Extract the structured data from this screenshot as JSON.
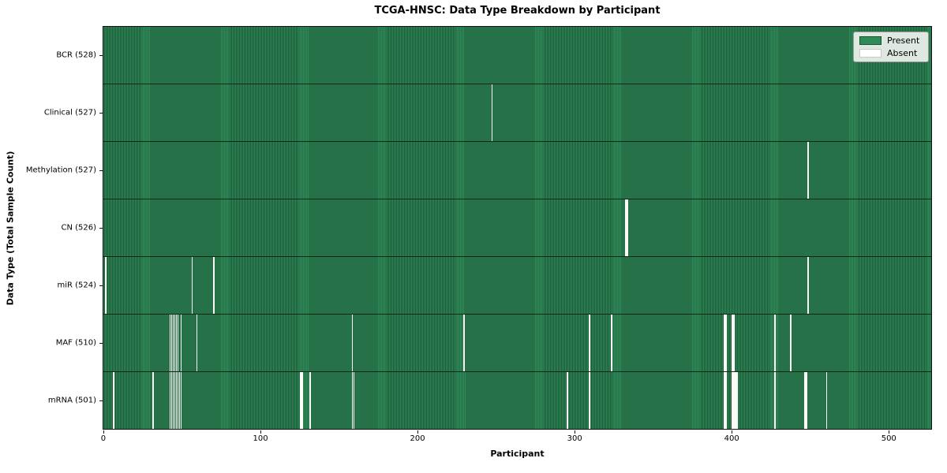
{
  "chart_data": {
    "type": "heatmap",
    "title": "TCGA-HNSC: Data Type Breakdown by Participant",
    "xlabel": "Participant",
    "ylabel": "Data Type (Total Sample Count)",
    "x_range": [
      0,
      528
    ],
    "x_ticks": [
      0,
      100,
      200,
      300,
      400,
      500
    ],
    "legend": [
      "Present",
      "Absent"
    ],
    "legend_position": "upper right",
    "grid": false,
    "colors": {
      "present": "#2e8b57",
      "present_edge_dark": "#1e5737",
      "absent": "#fbfbf8",
      "row_divider": "#0a1a10",
      "legend_bg": "#eef2ee"
    },
    "rows": [
      {
        "label": "BCR (528)",
        "data_type": "BCR",
        "present_count": 528,
        "absent_participants": []
      },
      {
        "label": "Clinical (527)",
        "data_type": "Clinical",
        "present_count": 527,
        "absent_participants": [
          247
        ]
      },
      {
        "label": "Methylation (527)",
        "data_type": "Methylation",
        "present_count": 527,
        "absent_participants": [
          448
        ]
      },
      {
        "label": "CN (526)",
        "data_type": "CN",
        "present_count": 526,
        "absent_participants": [
          332,
          333
        ]
      },
      {
        "label": "miR (524)",
        "data_type": "miR",
        "present_count": 524,
        "absent_participants": [
          1,
          56,
          70,
          448
        ]
      },
      {
        "label": "MAF (510)",
        "data_type": "MAF",
        "present_count": 510,
        "absent_participants": [
          42,
          43,
          44,
          45,
          46,
          47,
          49,
          59,
          158,
          229,
          309,
          323,
          395,
          396,
          400,
          401,
          427,
          437
        ]
      },
      {
        "label": "mRNA (501)",
        "data_type": "mRNA",
        "present_count": 501,
        "absent_participants": [
          6,
          31,
          42,
          43,
          44,
          45,
          46,
          47,
          48,
          49,
          125,
          126,
          131,
          158,
          159,
          295,
          309,
          395,
          396,
          400,
          401,
          402,
          403,
          427,
          446,
          447,
          460
        ]
      }
    ]
  }
}
